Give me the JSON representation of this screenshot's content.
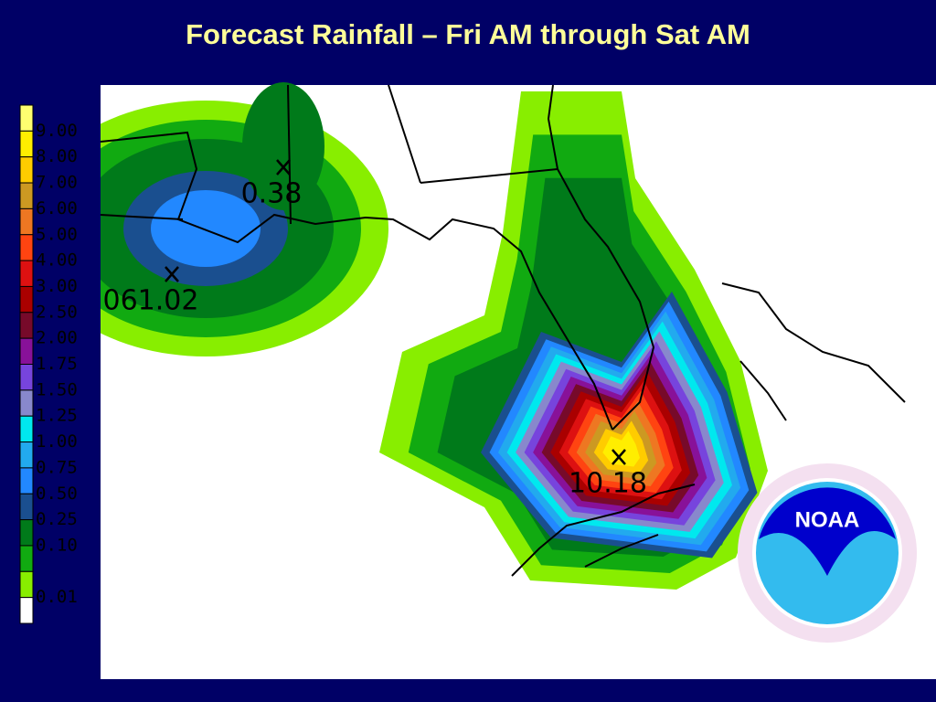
{
  "title": "Forecast Rainfall – Fri AM through Sat AM",
  "legend": {
    "top_color": "#ffff70",
    "items": [
      {
        "label": "9.00",
        "color": "#ffee00"
      },
      {
        "label": "8.00",
        "color": "#ffcc00"
      },
      {
        "label": "7.00",
        "color": "#cc9922"
      },
      {
        "label": "6.00",
        "color": "#ee7722"
      },
      {
        "label": "5.00",
        "color": "#ff4411"
      },
      {
        "label": "4.00",
        "color": "#dd1111"
      },
      {
        "label": "3.00",
        "color": "#aa0000"
      },
      {
        "label": "2.50",
        "color": "#770a2a"
      },
      {
        "label": "2.00",
        "color": "#881199"
      },
      {
        "label": "1.75",
        "color": "#7744dd"
      },
      {
        "label": "1.50",
        "color": "#8888cc"
      },
      {
        "label": "1.25",
        "color": "#00e8ee"
      },
      {
        "label": "1.00",
        "color": "#22aaee"
      },
      {
        "label": "0.75",
        "color": "#2288ff"
      },
      {
        "label": "0.50",
        "color": "#1a4f8f"
      },
      {
        "label": "0.25",
        "color": "#007a1a"
      },
      {
        "label": "0.10",
        "color": "#11aa11"
      },
      {
        "label": "0.01",
        "color": "#88ee00"
      }
    ],
    "bottom_color": "#ffffff"
  },
  "map_labels": [
    {
      "text": "0.38",
      "x_mark": true
    },
    {
      "text": "061.02",
      "x_mark": true
    },
    {
      "text": "10.18",
      "x_mark": true
    }
  ],
  "logo": "NOAA"
}
